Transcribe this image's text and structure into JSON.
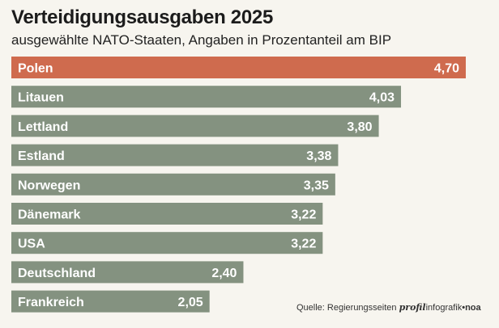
{
  "header": {
    "title": "Verteidigungsausgaben 2025",
    "subtitle": "ausgewählte NATO-Staaten, Angaben in Prozentanteil am BIP"
  },
  "footer": {
    "source": "Quelle: Regierungsseiten",
    "brand_profil": "profil",
    "brand_infografik": "infografik",
    "brand_noa": "•noa"
  },
  "colors": {
    "highlight": "#cf6b4e",
    "bar": "#849280",
    "background": "#f7f5ef"
  },
  "chart_data": {
    "type": "bar",
    "orientation": "horizontal",
    "title": "Verteidigungsausgaben 2025",
    "subtitle": "ausgewählte NATO-Staaten, Angaben in Prozentanteil am BIP",
    "categories": [
      "Polen",
      "Litauen",
      "Lettland",
      "Estland",
      "Norwegen",
      "Dänemark",
      "USA",
      "Deutschland",
      "Frankreich"
    ],
    "values": [
      4.7,
      4.03,
      3.8,
      3.38,
      3.35,
      3.22,
      3.22,
      2.4,
      2.05
    ],
    "value_labels": [
      "4,70",
      "4,03",
      "3,80",
      "3,38",
      "3,35",
      "3,22",
      "3,22",
      "2,40",
      "2,05"
    ],
    "highlighted": [
      "Polen"
    ],
    "xlim": [
      0,
      4.7
    ],
    "grid": false,
    "legend": "none"
  }
}
